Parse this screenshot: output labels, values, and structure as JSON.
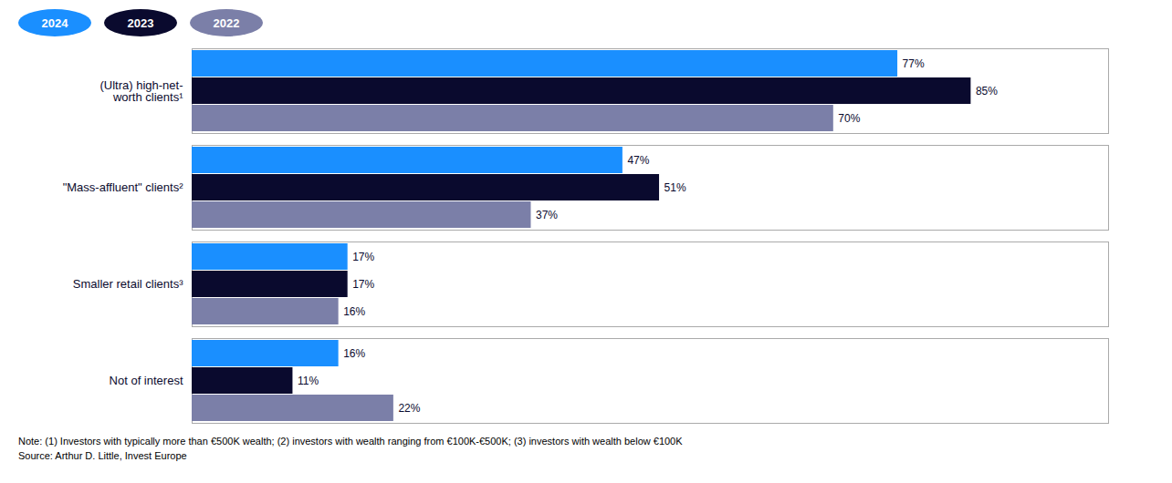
{
  "chart_data": {
    "type": "bar",
    "orientation": "horizontal",
    "categories": [
      "(Ultra) high-net-\nworth clients¹",
      "\"Mass-affluent\" clients²",
      "Smaller retail clients³",
      "Not of interest"
    ],
    "series": [
      {
        "name": "2024",
        "color": "#1a8fff",
        "values": [
          77,
          47,
          17,
          16
        ],
        "value_labels": [
          "77%",
          "47%",
          "17%",
          "16%"
        ]
      },
      {
        "name": "2023",
        "color": "#0a0a2e",
        "values": [
          85,
          51,
          17,
          11
        ],
        "value_labels": [
          "85%",
          "51%",
          "17%",
          "11%"
        ]
      },
      {
        "name": "2022",
        "color": "#7b7fa8",
        "values": [
          70,
          37,
          16,
          22
        ],
        "value_labels": [
          "70%",
          "37%",
          "16%",
          "22%"
        ]
      }
    ],
    "xlim": [
      0,
      100
    ],
    "data_labels": true,
    "tick_labels": "y",
    "grid": false,
    "legend": "top-left",
    "annotations": [
      "Note: (1) Investors with typically more than €500K wealth; (2) investors with wealth ranging from €100K-€500K; (3) investors with wealth below €100K",
      "Source: Arthur D. Little, Invest Europe"
    ]
  }
}
